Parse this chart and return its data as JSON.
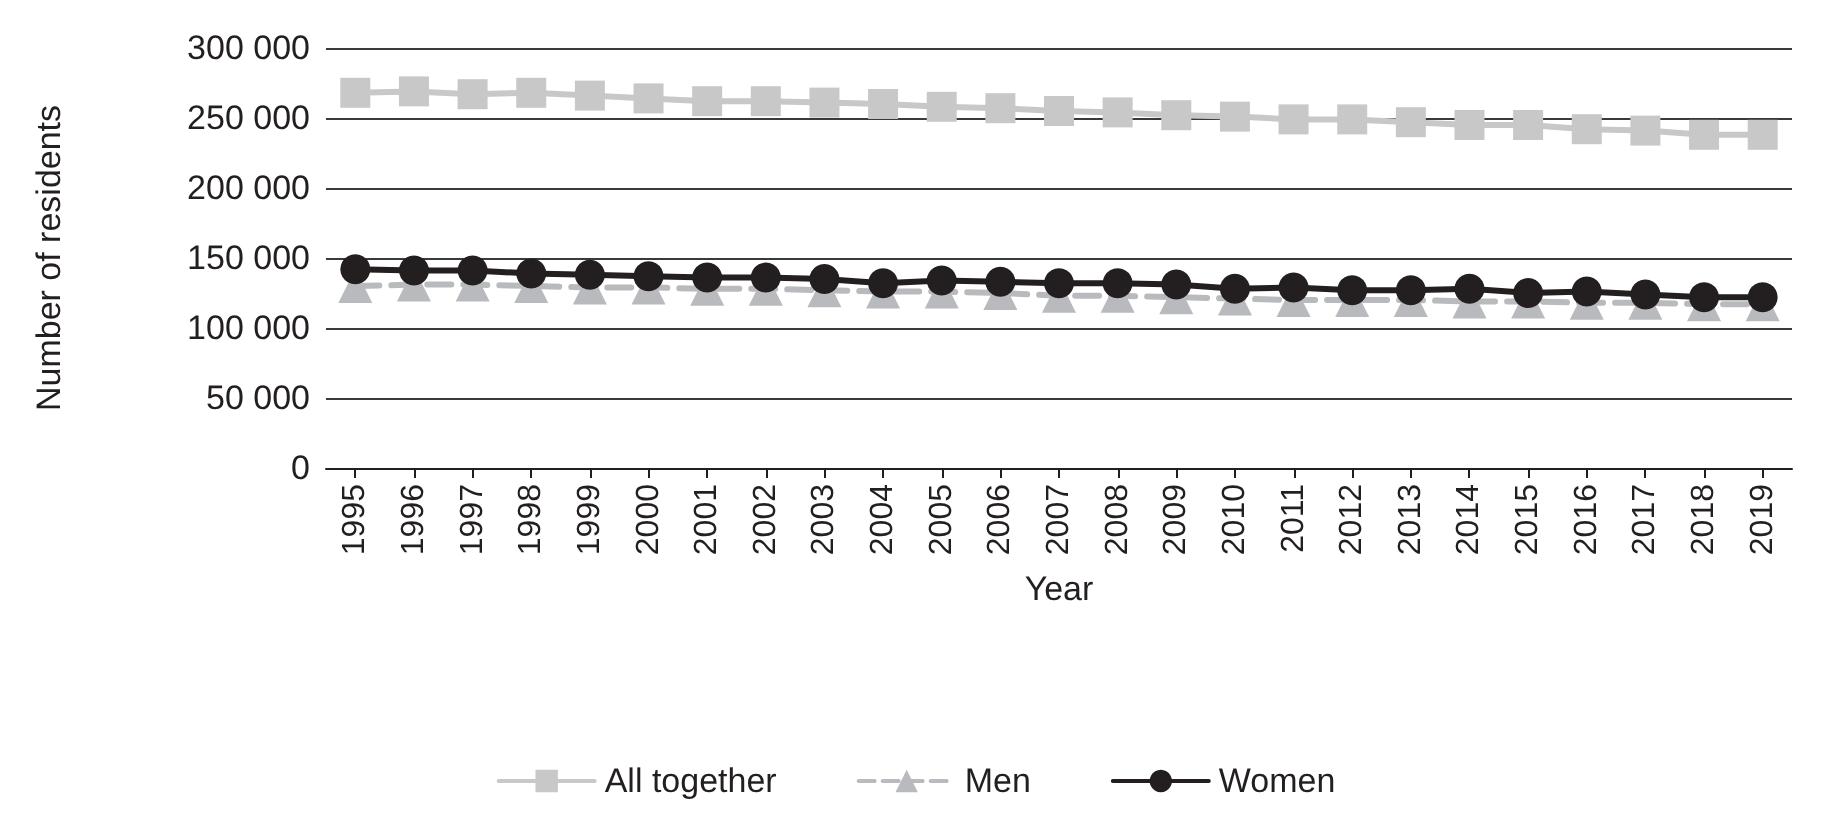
{
  "chart_data": {
    "type": "line",
    "xlabel": "Year",
    "ylabel": "Number of residents",
    "categories": [
      "1995",
      "1996",
      "1997",
      "1998",
      "1999",
      "2000",
      "2001",
      "2002",
      "2003",
      "2004",
      "2005",
      "2006",
      "2007",
      "2008",
      "2009",
      "2010",
      "2011",
      "2012",
      "2013",
      "2014",
      "2015",
      "2016",
      "2017",
      "2018",
      "2019"
    ],
    "ylim": [
      0,
      300000
    ],
    "yticks": [
      {
        "value": 0,
        "label": "0"
      },
      {
        "value": 50000,
        "label": "50 000"
      },
      {
        "value": 100000,
        "label": "100 000"
      },
      {
        "value": 150000,
        "label": "150 000"
      },
      {
        "value": 200000,
        "label": "200 000"
      },
      {
        "value": 250000,
        "label": "250 000"
      },
      {
        "value": 300000,
        "label": "300 000"
      }
    ],
    "grid": "y",
    "legend": "bottom",
    "series": [
      {
        "name": "All together",
        "color": "#c8c8c8",
        "marker": "square",
        "line_style": "solid",
        "values": [
          268000,
          269000,
          267000,
          268000,
          266000,
          264000,
          262000,
          262000,
          261000,
          260000,
          258000,
          257000,
          255000,
          254000,
          252000,
          251000,
          249000,
          249000,
          247000,
          245000,
          245000,
          242000,
          241000,
          238000,
          238000
        ]
      },
      {
        "name": "Men",
        "color": "#b9babe",
        "marker": "triangle",
        "line_style": "dashed",
        "values": [
          130000,
          131000,
          131000,
          130000,
          129000,
          129000,
          128000,
          128000,
          127000,
          126000,
          126000,
          125000,
          123000,
          123000,
          122000,
          121000,
          120000,
          120000,
          120000,
          119000,
          119000,
          118000,
          118000,
          117000,
          117000
        ]
      },
      {
        "name": "Women",
        "color": "#231f20",
        "marker": "circle",
        "line_style": "solid",
        "values": [
          142000,
          141000,
          141000,
          139000,
          138000,
          137000,
          136000,
          136000,
          135000,
          132000,
          134000,
          133000,
          132000,
          132000,
          131000,
          128000,
          129000,
          127000,
          127000,
          128000,
          125000,
          126000,
          124000,
          122000,
          122000
        ]
      }
    ]
  }
}
